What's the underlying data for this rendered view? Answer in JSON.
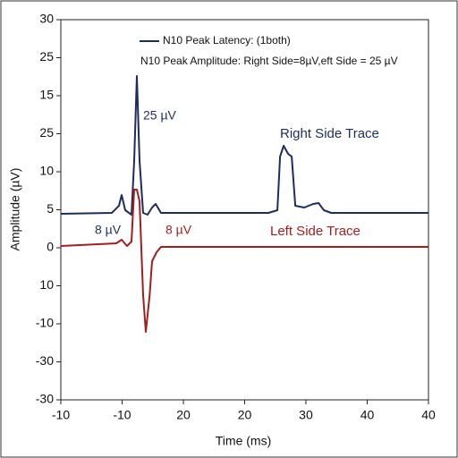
{
  "chart_data": {
    "type": "line",
    "xlabel": "Time (ms)",
    "ylabel": "Amplitude (µV)",
    "legend_title": "N10 Peak Latency: (1both)",
    "legend_subtitle": "N10 Peak Amplitude: Right Side=8µV,eft Side = 25 µV",
    "xlim": [
      -10,
      40
    ],
    "ylim": [
      -20,
      30
    ],
    "xticks": [
      {
        "value": -10,
        "label": "-10"
      },
      {
        "value": -1.67,
        "label": "-10"
      },
      {
        "value": 6.67,
        "label": "20"
      },
      {
        "value": 15,
        "label": "20"
      },
      {
        "value": 23.33,
        "label": "30"
      },
      {
        "value": 31.67,
        "label": "40"
      },
      {
        "value": 40,
        "label": "40"
      }
    ],
    "yticks": [
      30,
      25,
      {
        "value": 20,
        "label": "15"
      },
      {
        "value": 15,
        "label": "25"
      },
      10,
      5,
      0,
      {
        "value": -5,
        "label": "10"
      },
      {
        "value": -10,
        "label": "-10"
      },
      {
        "value": -15,
        "label": "-30"
      },
      {
        "value": -20,
        "label": "-30"
      }
    ],
    "series": [
      {
        "name": "Right Side Trace",
        "color": "#1f2d5a",
        "x": [
          -10,
          -3.06,
          -2.09,
          -1.73,
          -1.24,
          -0.39,
          -0.02,
          0.34,
          0.71,
          1.19,
          1.8,
          2.41,
          2.9,
          3.63,
          18.24,
          19.45,
          19.82,
          20.31,
          20.91,
          21.4,
          21.89,
          23.1,
          24.32,
          25.05,
          25.78,
          26.76,
          40
        ],
        "values": [
          4.47,
          4.59,
          5.53,
          6.94,
          4.94,
          4.35,
          11.41,
          22.59,
          11.41,
          4.59,
          4.35,
          5.29,
          5.76,
          4.59,
          4.59,
          4.94,
          12.0,
          13.41,
          12.35,
          12.0,
          5.53,
          5.29,
          5.76,
          5.88,
          4.94,
          4.59,
          4.59
        ]
      },
      {
        "name": "Left Side Trace",
        "color": "#a31f1f",
        "x": [
          -10,
          -2.46,
          -1.73,
          -1.0,
          -0.39,
          -0.02,
          0.34,
          0.71,
          1.19,
          1.56,
          2.08,
          2.41,
          3.02,
          3.63,
          40
        ],
        "values": [
          0.24,
          0.59,
          1.06,
          0.24,
          0.82,
          7.65,
          7.65,
          6.12,
          -6.24,
          -11.06,
          -6.24,
          -1.76,
          -0.59,
          0.12,
          0.12
        ]
      }
    ],
    "annotations": [
      "25 µV",
      "8 µV",
      "8 µV",
      "Right Side Trace",
      "Left Side Trace"
    ]
  }
}
